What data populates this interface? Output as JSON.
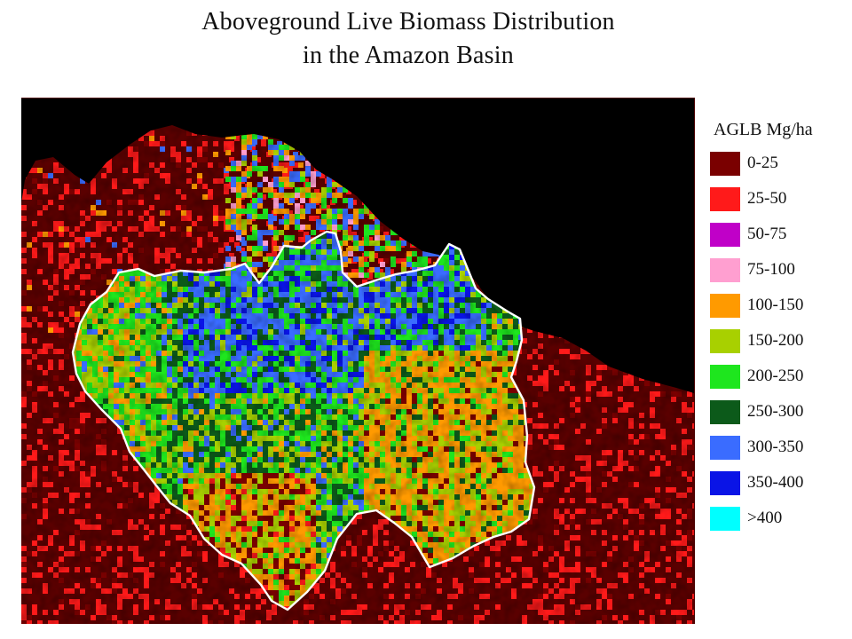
{
  "title": {
    "line1": "Aboveground Live Biomass Distribution",
    "line2": "in the Amazon Basin"
  },
  "legend": {
    "title": "AGLB Mg/ha",
    "classes": [
      {
        "label": "0-25",
        "color": "#7a0000"
      },
      {
        "label": "25-50",
        "color": "#ff1a1a"
      },
      {
        "label": "50-75",
        "color": "#c000c8"
      },
      {
        "label": "75-100",
        "color": "#ff9fd0"
      },
      {
        "label": "100-150",
        "color": "#ff9a00"
      },
      {
        "label": "150-200",
        "color": "#a8d000"
      },
      {
        "label": "200-250",
        "color": "#1ee61e"
      },
      {
        "label": "250-300",
        "color": "#0c5a1a"
      },
      {
        "label": "300-350",
        "color": "#3a6cff"
      },
      {
        "label": "350-400",
        "color": "#0a14e6"
      },
      {
        "label": ">400",
        "color": "#00ffff"
      }
    ]
  },
  "map": {
    "ocean_color": "#000000",
    "land_color": "#5a0000",
    "basin_boundary_color": "#ffffff"
  }
}
